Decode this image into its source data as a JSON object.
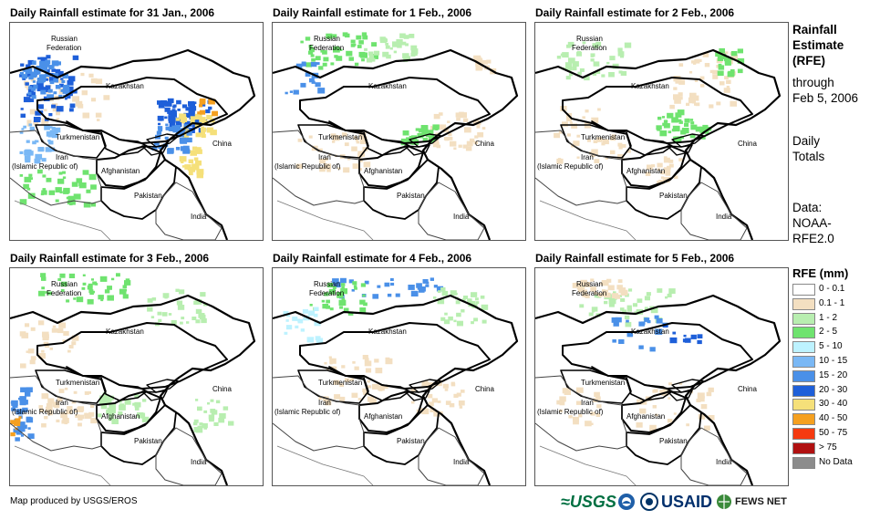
{
  "panels": [
    {
      "title": "Daily Rainfall estimate for 31 Jan., 2006"
    },
    {
      "title": "Daily Rainfall estimate for 1 Feb., 2006"
    },
    {
      "title": "Daily Rainfall estimate for 2 Feb., 2006"
    },
    {
      "title": "Daily Rainfall estimate for 3 Feb., 2006"
    },
    {
      "title": "Daily Rainfall estimate for 4 Feb., 2006"
    },
    {
      "title": "Daily Rainfall estimate for 5 Feb., 2006"
    }
  ],
  "map_labels": {
    "russia_line1": "Russian",
    "russia_line2": "Federation",
    "kazakhstan": "Kazakhstan",
    "turkmenistan": "Turkmenistan",
    "iran_line1": "Iran",
    "iran_line2": "(Islamic Republic of)",
    "afghanistan": "Afghanistan",
    "pakistan": "Pakistan",
    "china": "China",
    "india": "India"
  },
  "side_text": {
    "title1": "Rainfall",
    "title2": "Estimate",
    "title3": "(RFE)",
    "through": "through",
    "date": "Feb 5, 2006",
    "daily": "Daily",
    "totals": "Totals",
    "data": "Data:",
    "source1": "NOAA-",
    "source2": "RFE2.0"
  },
  "legend": {
    "title": "RFE (mm)",
    "items": [
      {
        "label": "0 - 0.1",
        "color": "#ffffff"
      },
      {
        "label": "0.1 - 1",
        "color": "#f3dfc1"
      },
      {
        "label": "1 - 2",
        "color": "#b8eeb0"
      },
      {
        "label": "2 - 5",
        "color": "#6fe36f"
      },
      {
        "label": "5 - 10",
        "color": "#bdf2ff"
      },
      {
        "label": "10 - 15",
        "color": "#7ab8f5"
      },
      {
        "label": "15 - 20",
        "color": "#4a90e8"
      },
      {
        "label": "20 - 30",
        "color": "#1e5fd9"
      },
      {
        "label": "30 - 40",
        "color": "#f5e07a"
      },
      {
        "label": "40 - 50",
        "color": "#f5a020"
      },
      {
        "label": "50 - 75",
        "color": "#f53a10"
      },
      {
        "label": "> 75",
        "color": "#b01010"
      },
      {
        "label": "No Data",
        "color": "#8c8c8c"
      }
    ]
  },
  "credit": "Map produced by USGS/EROS",
  "logos": {
    "usgs": "≈USGS",
    "usaid": "USAID",
    "fews": "FEWS NET"
  }
}
